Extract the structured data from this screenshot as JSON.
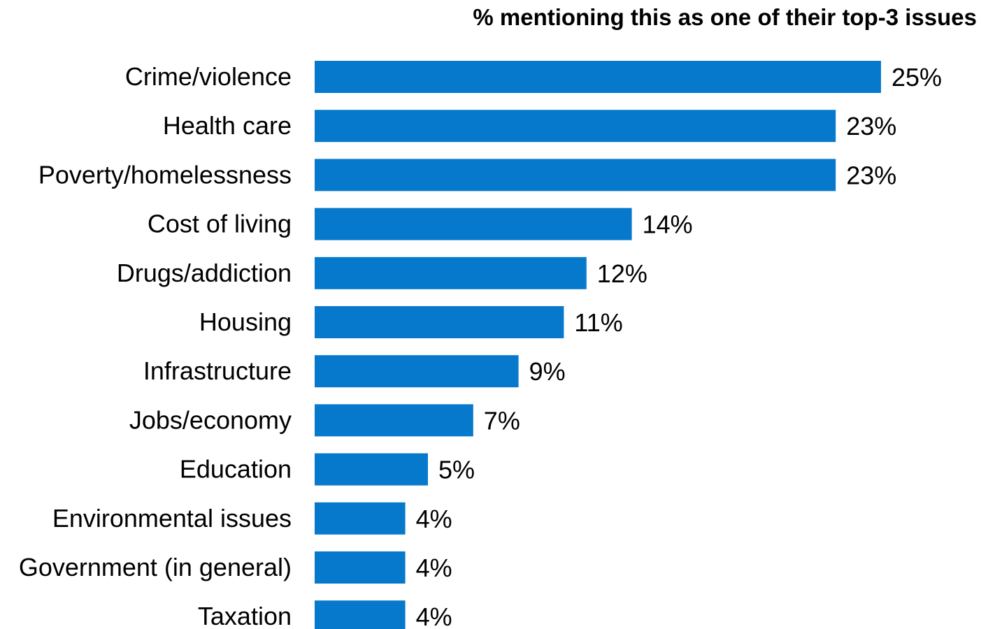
{
  "chart_data": {
    "type": "bar",
    "orientation": "horizontal",
    "title": "% mentioning this as one of their top-3 issues",
    "categories": [
      "Crime/violence",
      "Health care",
      "Poverty/homelessness",
      "Cost of living",
      "Drugs/addiction",
      "Housing",
      "Infrastructure",
      "Jobs/economy",
      "Education",
      "Environmental issues",
      "Government (in general)",
      "Taxation"
    ],
    "values": [
      25,
      23,
      23,
      14,
      12,
      11,
      9,
      7,
      5,
      4,
      4,
      4
    ],
    "value_labels": [
      "25%",
      "23%",
      "23%",
      "14%",
      "12%",
      "11%",
      "9%",
      "7%",
      "5%",
      "4%",
      "4%",
      "4%"
    ],
    "xlim": [
      0,
      25
    ],
    "grid": false,
    "legend": "none",
    "bar_color": "#0779CC"
  }
}
